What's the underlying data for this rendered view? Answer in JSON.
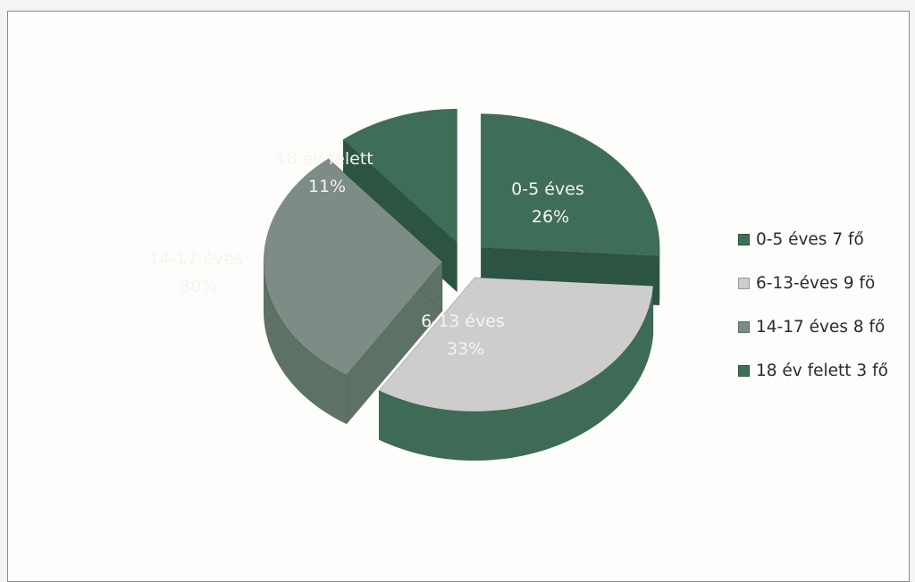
{
  "chart_data": {
    "type": "pie",
    "style": "3d-exploded",
    "categories": [
      "0-5 éves",
      "6-13 éves",
      "14-17 éves",
      "18 év felett"
    ],
    "values": [
      26,
      33,
      30,
      11
    ],
    "unit": "%",
    "slice_labels": [
      {
        "name": "0-5 éves",
        "percent": "26%"
      },
      {
        "name": "6-13 éves",
        "percent": "33%"
      },
      {
        "name": "14-17 éves",
        "percent": "30%"
      },
      {
        "name": "18 év felett",
        "percent": "11%"
      }
    ],
    "legend": {
      "position": "right",
      "entries": [
        "0-5 éves 7 fő",
        "6-13-éves 9 fö",
        "14-17 éves 8 fő",
        "18 év felett 3 fő"
      ]
    },
    "colors": [
      "#3f6e58",
      "#cdcdcd",
      "#7e8c86",
      "#3f6e58"
    ],
    "side_colors": [
      "#2c5442",
      "#3e6b56",
      "#5d7166",
      "#2c5442"
    ]
  }
}
